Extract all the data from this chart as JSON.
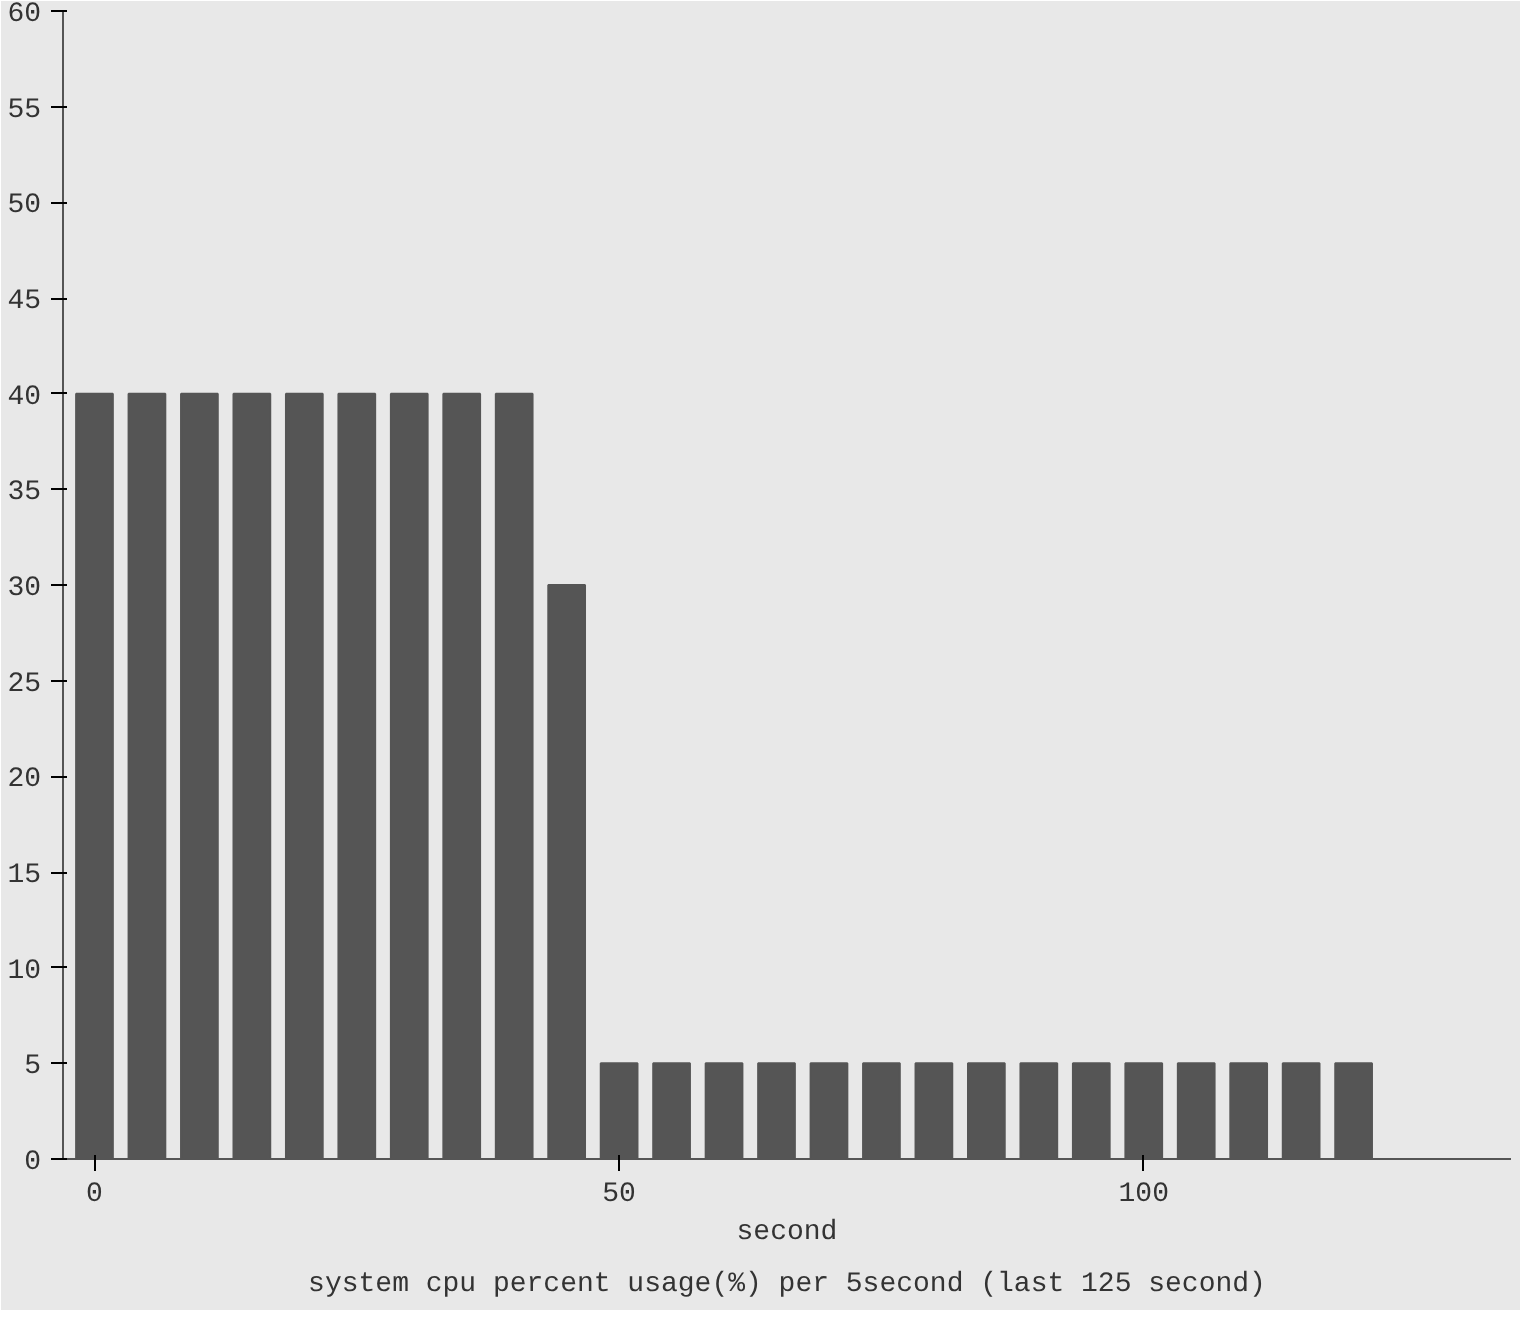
{
  "chart_data": {
    "type": "bar",
    "title": "system cpu percent usage(%) per 5second (last 125 second)",
    "xlabel": "second",
    "x": [
      0,
      5,
      10,
      15,
      20,
      25,
      30,
      35,
      40,
      45,
      50,
      55,
      60,
      65,
      70,
      75,
      80,
      85,
      90,
      95,
      100,
      105,
      110,
      115,
      120
    ],
    "values": [
      40,
      40,
      40,
      40,
      40,
      40,
      40,
      40,
      40,
      30,
      5,
      5,
      5,
      5,
      5,
      5,
      5,
      5,
      5,
      5,
      5,
      5,
      5,
      5,
      5
    ],
    "color": "#555555",
    "xlim": [
      -3,
      135
    ],
    "ylim": [
      0,
      60
    ],
    "xticks": [
      0,
      50,
      100
    ],
    "yticks": [
      0,
      5,
      10,
      15,
      20,
      25,
      30,
      35,
      40,
      45,
      50,
      55,
      60
    ]
  }
}
